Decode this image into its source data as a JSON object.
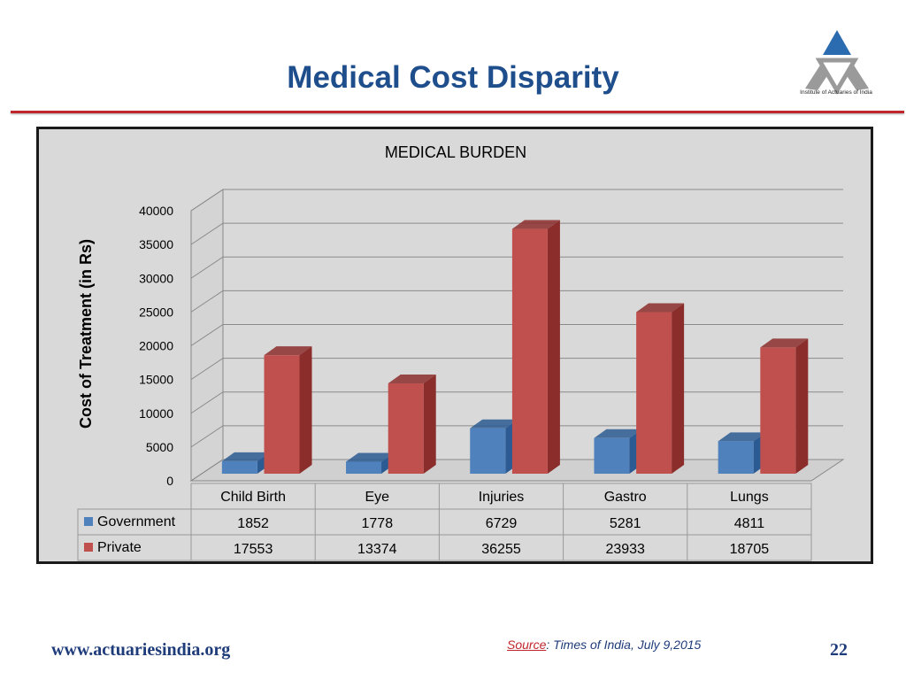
{
  "slide": {
    "title": "Medical Cost Disparity",
    "logo_caption": "Institute of Actuaries of India",
    "footer_url": "www.actuariesindia.org",
    "source_label": "Source",
    "source_text": ": Times of India, July 9,2015",
    "page_number": "22"
  },
  "colors": {
    "title": "#1f4e8c",
    "rule": "#c0272d",
    "government_front": "#4f81bd",
    "government_side": "#2c5a92",
    "private_front": "#c0504d",
    "private_side": "#8b2d2a",
    "chart_background": "#d9d9d9"
  },
  "chart_data": {
    "type": "bar",
    "title": "MEDICAL BURDEN",
    "ylabel": "Cost of Treatment (in Rs)",
    "xlabel": "",
    "ylim": [
      0,
      40000
    ],
    "yticks": [
      0,
      5000,
      10000,
      15000,
      20000,
      25000,
      30000,
      35000,
      40000
    ],
    "categories": [
      "Child Birth",
      "Eye",
      "Injuries",
      "Gastro",
      "Lungs"
    ],
    "series": [
      {
        "name": "Government",
        "values": [
          1852,
          1778,
          6729,
          5281,
          4811
        ]
      },
      {
        "name": "Private",
        "values": [
          17553,
          13374,
          36255,
          23933,
          18705
        ]
      }
    ],
    "data_table": true,
    "style": "3d-clustered-column"
  }
}
